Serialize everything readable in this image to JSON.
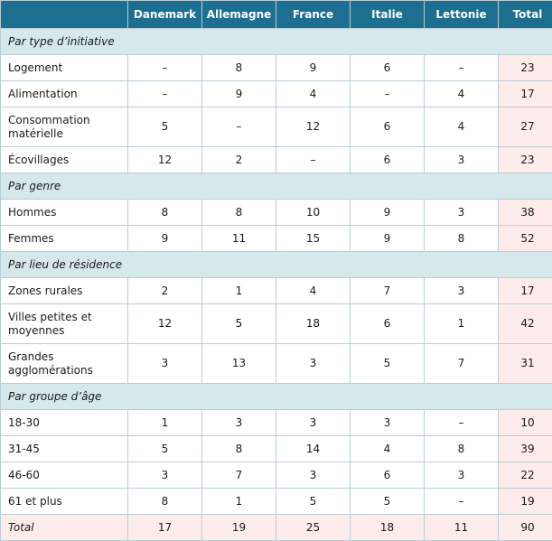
{
  "columns": [
    "",
    "Danemark",
    "Allemagne",
    "France",
    "Italie",
    "Lettonie",
    "Total"
  ],
  "sections": [
    {
      "title": "Par type d’initiative",
      "rows": [
        {
          "label": "Logement",
          "values": [
            "–",
            "8",
            "9",
            "6",
            "–",
            "23"
          ]
        },
        {
          "label": "Alimentation",
          "values": [
            "–",
            "9",
            "4",
            "–",
            "4",
            "17"
          ]
        },
        {
          "label": "Consommation matérielle",
          "values": [
            "5",
            "–",
            "12",
            "6",
            "4",
            "27"
          ]
        },
        {
          "label": "Écovillages",
          "values": [
            "12",
            "2",
            "–",
            "6",
            "3",
            "23"
          ]
        }
      ]
    },
    {
      "title": "Par genre",
      "rows": [
        {
          "label": "Hommes",
          "values": [
            "8",
            "8",
            "10",
            "9",
            "3",
            "38"
          ]
        },
        {
          "label": "Femmes",
          "values": [
            "9",
            "11",
            "15",
            "9",
            "8",
            "52"
          ]
        }
      ]
    },
    {
      "title": "Par lieu de résidence",
      "rows": [
        {
          "label": "Zones rurales",
          "values": [
            "2",
            "1",
            "4",
            "7",
            "3",
            "17"
          ]
        },
        {
          "label": "Villes petites et moyennes",
          "values": [
            "12",
            "5",
            "18",
            "6",
            "1",
            "42"
          ]
        },
        {
          "label": "Grandes agglomérations",
          "values": [
            "3",
            "13",
            "3",
            "5",
            "7",
            "31"
          ]
        }
      ]
    },
    {
      "title": "Par groupe d’âge",
      "rows": [
        {
          "label": "18-30",
          "values": [
            "1",
            "3",
            "3",
            "3",
            "–",
            "10"
          ]
        },
        {
          "label": "31-45",
          "values": [
            "5",
            "8",
            "14",
            "4",
            "8",
            "39"
          ]
        },
        {
          "label": "46-60",
          "values": [
            "3",
            "7",
            "3",
            "6",
            "3",
            "22"
          ]
        },
        {
          "label": "61 et plus",
          "values": [
            "8",
            "1",
            "5",
            "5",
            "–",
            "19"
          ]
        }
      ]
    }
  ],
  "total_row": {
    "label": "Total",
    "values": [
      "17",
      "19",
      "25",
      "18",
      "11",
      "90"
    ]
  }
}
